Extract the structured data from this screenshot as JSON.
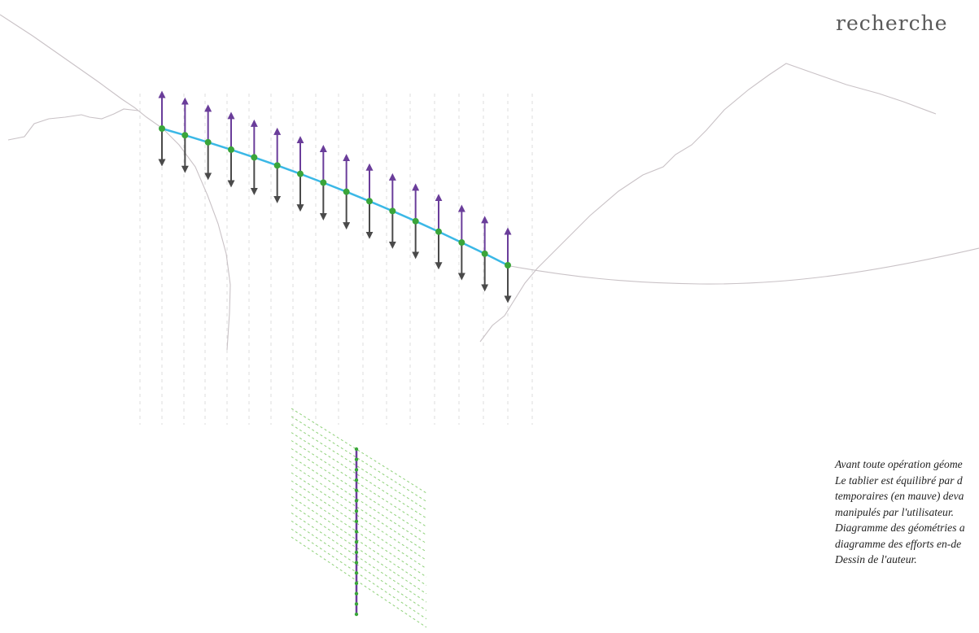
{
  "heading": "recherche",
  "caption": {
    "lines": [
      "Avant toute opération géome",
      "Le tablier est équilibré par d",
      "temporaires (en mauve) deva",
      "manipulés par l'utilisateur.",
      "Diagramme des géométries a",
      "diagramme des efforts en-de",
      "Dessin de l'auteur."
    ]
  },
  "colors": {
    "terrain": "#c9c2c6",
    "dashed_guides": "#dcdcdc",
    "deck": "#3bb8e6",
    "node": "#3aa53a",
    "force_up": "#6a3d9a",
    "force_down": "#4a4a4a",
    "polygon_rays": "#8fd17a"
  },
  "diagram": {
    "node_count": 16
  }
}
